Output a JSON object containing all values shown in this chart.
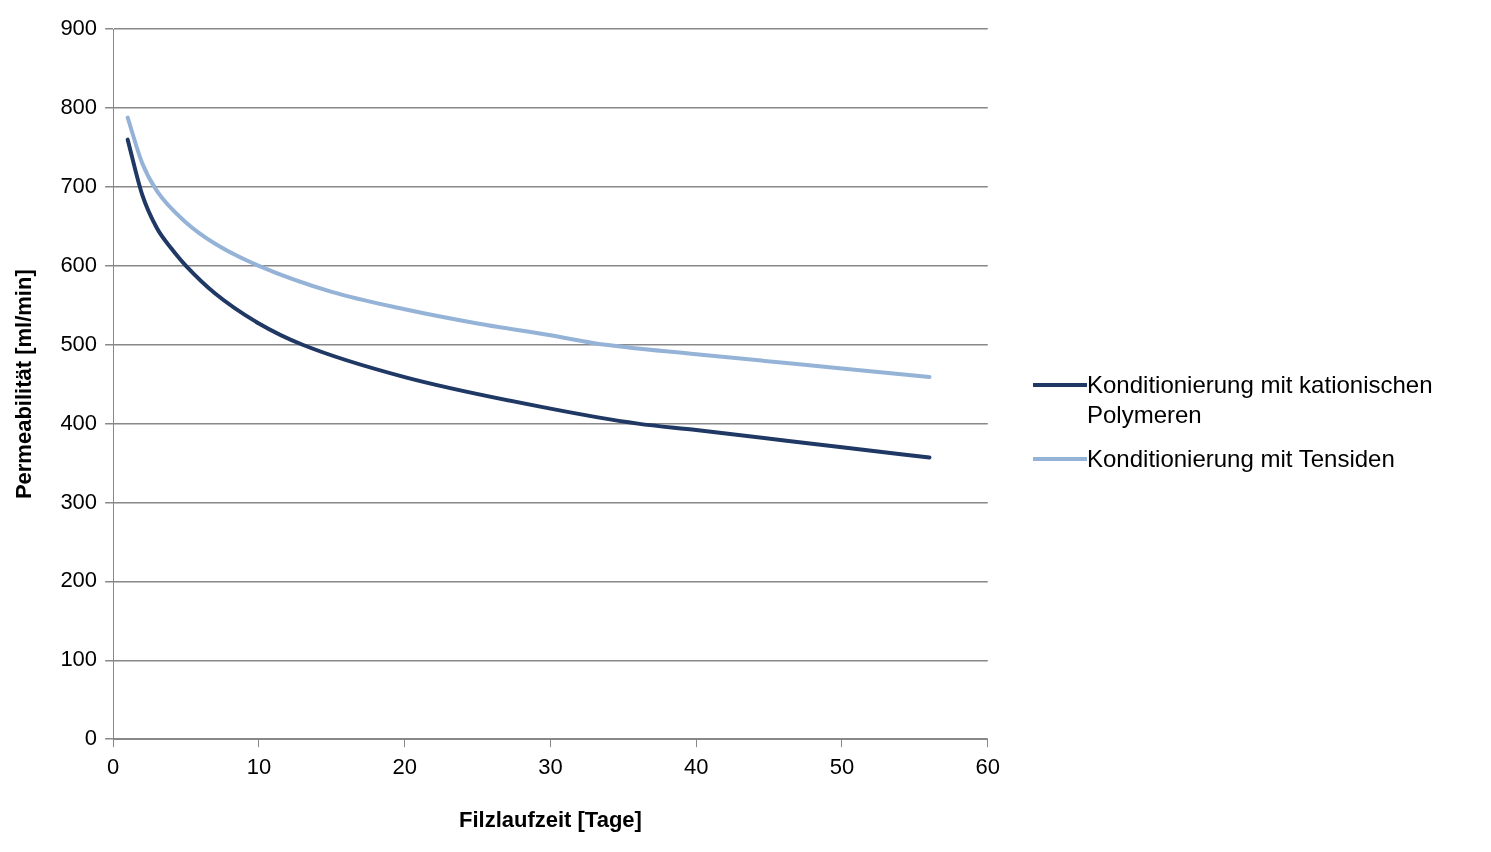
{
  "chart_data": {
    "type": "line",
    "xlabel": "Filzlaufzeit [Tage]",
    "ylabel": "Permeabilität [ml/min]",
    "xlim": [
      0,
      60
    ],
    "xticks": [
      0,
      10,
      20,
      30,
      40,
      50,
      60
    ],
    "ylim": [
      0,
      900
    ],
    "yticks": [
      0,
      100,
      200,
      300,
      400,
      500,
      600,
      700,
      800,
      900
    ],
    "grid": "y",
    "legend": "right",
    "marker": "none",
    "line_style": "solid",
    "series": [
      {
        "name": "Konditionierung mit kationischen Polymeren",
        "color": "#1f3864",
        "x": [
          1,
          2,
          3,
          4,
          5,
          7,
          10,
          13,
          20,
          30,
          36,
          40,
          50,
          56
        ],
        "values": [
          760,
          690,
          648,
          622,
          600,
          565,
          527,
          500,
          459,
          419,
          400,
          392,
          370,
          357
        ]
      },
      {
        "name": "Konditionierung mit Tensiden",
        "color": "#95b3d7",
        "x": [
          1,
          2,
          3,
          5,
          7,
          10,
          15,
          20,
          25,
          30,
          33,
          40,
          50,
          56
        ],
        "values": [
          788,
          730,
          695,
          655,
          628,
          600,
          567,
          545,
          527,
          512,
          502,
          488,
          470,
          459
        ]
      }
    ]
  }
}
